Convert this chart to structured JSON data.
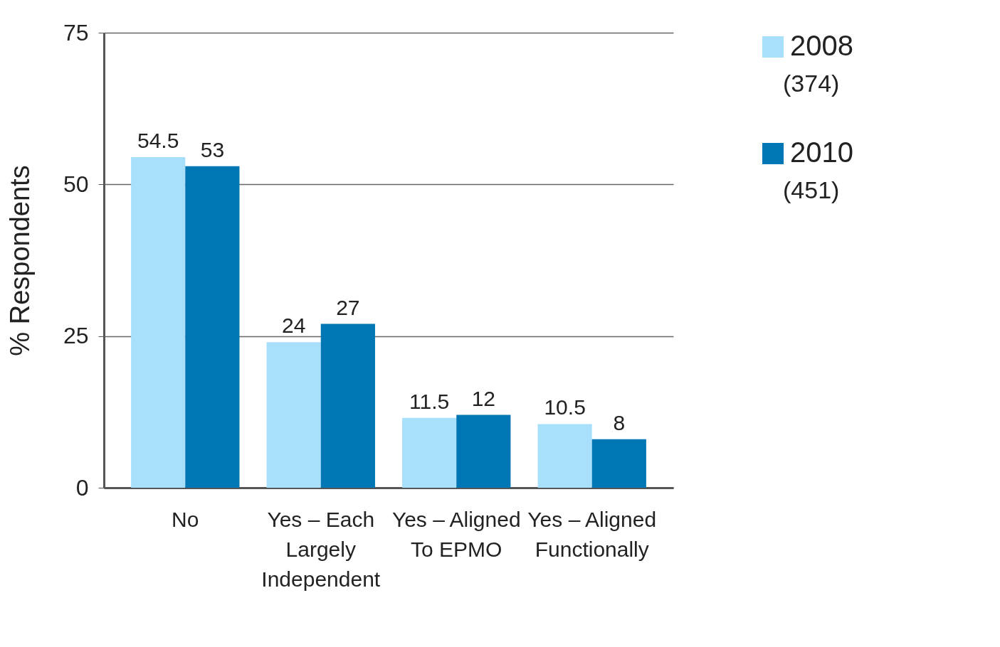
{
  "chart_data": {
    "type": "bar",
    "ylabel": "% Respondents",
    "categories": [
      "No",
      "Yes – Each Largely Independent",
      "Yes – Aligned To EPMO",
      "Yes – Aligned Functionally"
    ],
    "series": [
      {
        "name": "2008",
        "color": "#a8e0fc",
        "values": [
          54.5,
          24,
          11.5,
          10.5
        ]
      },
      {
        "name": "2010",
        "color": "#0077b5",
        "values": [
          53,
          27,
          12,
          8
        ]
      }
    ],
    "annotations": [
      "(374)",
      "(451)"
    ],
    "ylim": [
      0,
      75
    ],
    "yticks": [
      0,
      25,
      50,
      75
    ],
    "grid": "y",
    "data_labels": true,
    "legend": "right"
  }
}
